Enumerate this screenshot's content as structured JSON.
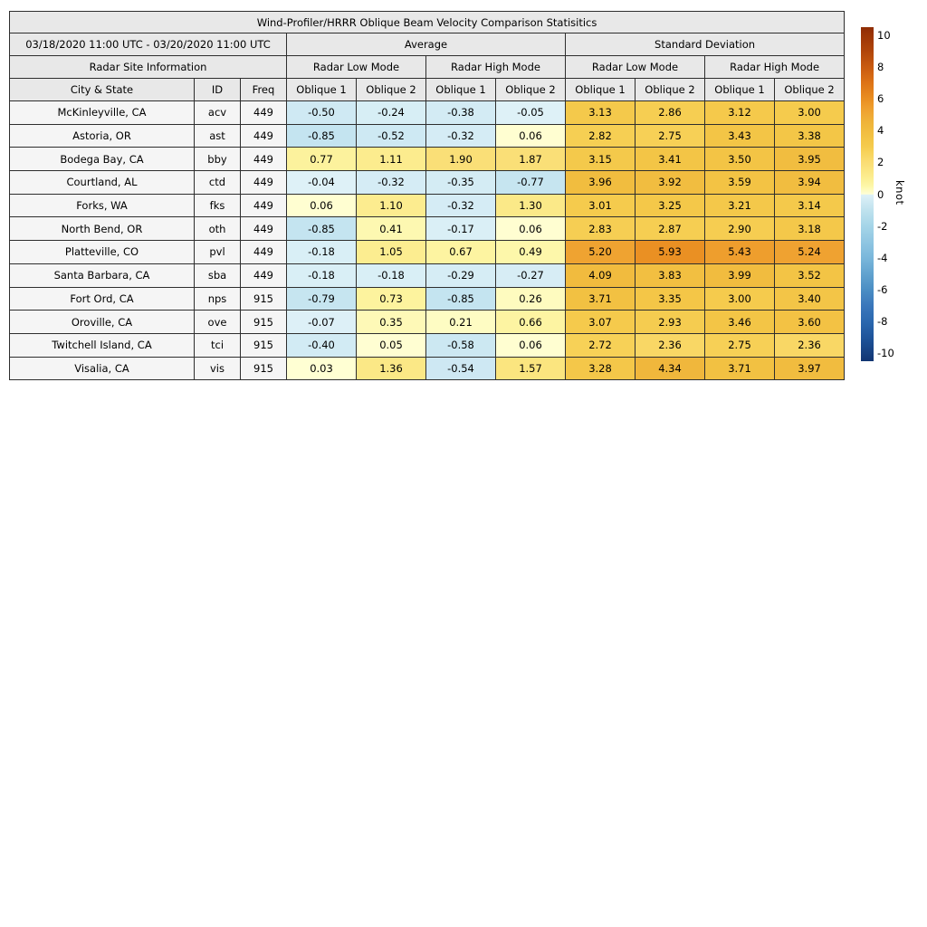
{
  "table": {
    "title": "Wind-Profiler/HRRR Oblique Beam Velocity Comparison Statisitics",
    "date_range": "03/18/2020 11:00 UTC - 03/20/2020 11:00 UTC",
    "groups": {
      "average": "Average",
      "std": "Standard Deviation"
    },
    "subgroups": {
      "site": "Radar Site Information",
      "low": "Radar Low Mode",
      "high": "Radar High Mode"
    },
    "columns": {
      "city": "City & State",
      "id": "ID",
      "freq": "Freq",
      "ob1": "Oblique 1",
      "ob2": "Oblique 2"
    }
  },
  "chart_data": {
    "type": "table",
    "title": "Wind-Profiler/HRRR Oblique Beam Velocity Comparison Statisitics",
    "period": "03/18/2020 11:00 UTC - 03/20/2020 11:00 UTC",
    "value_unit": "knot",
    "column_headers": [
      "City & State",
      "ID",
      "Freq",
      "Average Radar Low Mode Oblique 1",
      "Average Radar Low Mode Oblique 2",
      "Average Radar High Mode Oblique 1",
      "Average Radar High Mode Oblique 2",
      "Standard Deviation Radar Low Mode Oblique 1",
      "Standard Deviation Radar Low Mode Oblique 2",
      "Standard Deviation Radar High Mode Oblique 1",
      "Standard Deviation Radar High Mode Oblique 2"
    ],
    "rows": [
      {
        "city": "McKinleyville, CA",
        "id": "acv",
        "freq": "449",
        "values": [
          "-0.50",
          "-0.24",
          "-0.38",
          "-0.05",
          "3.13",
          "2.86",
          "3.12",
          "3.00"
        ]
      },
      {
        "city": "Astoria, OR",
        "id": "ast",
        "freq": "449",
        "values": [
          "-0.85",
          "-0.52",
          "-0.32",
          "0.06",
          "2.82",
          "2.75",
          "3.43",
          "3.38"
        ]
      },
      {
        "city": "Bodega Bay, CA",
        "id": "bby",
        "freq": "449",
        "values": [
          "0.77",
          "1.11",
          "1.90",
          "1.87",
          "3.15",
          "3.41",
          "3.50",
          "3.95"
        ]
      },
      {
        "city": "Courtland, AL",
        "id": "ctd",
        "freq": "449",
        "values": [
          "-0.04",
          "-0.32",
          "-0.35",
          "-0.77",
          "3.96",
          "3.92",
          "3.59",
          "3.94"
        ]
      },
      {
        "city": "Forks, WA",
        "id": "fks",
        "freq": "449",
        "values": [
          "0.06",
          "1.10",
          "-0.32",
          "1.30",
          "3.01",
          "3.25",
          "3.21",
          "3.14"
        ]
      },
      {
        "city": "North Bend, OR",
        "id": "oth",
        "freq": "449",
        "values": [
          "-0.85",
          "0.41",
          "-0.17",
          "0.06",
          "2.83",
          "2.87",
          "2.90",
          "3.18"
        ]
      },
      {
        "city": "Platteville, CO",
        "id": "pvl",
        "freq": "449",
        "values": [
          "-0.18",
          "1.05",
          "0.67",
          "0.49",
          "5.20",
          "5.93",
          "5.43",
          "5.24"
        ]
      },
      {
        "city": "Santa Barbara, CA",
        "id": "sba",
        "freq": "449",
        "values": [
          "-0.18",
          "-0.18",
          "-0.29",
          "-0.27",
          "4.09",
          "3.83",
          "3.99",
          "3.52"
        ]
      },
      {
        "city": "Fort Ord, CA",
        "id": "nps",
        "freq": "915",
        "values": [
          "-0.79",
          "0.73",
          "-0.85",
          "0.26",
          "3.71",
          "3.35",
          "3.00",
          "3.40"
        ]
      },
      {
        "city": "Oroville, CA",
        "id": "ove",
        "freq": "915",
        "values": [
          "-0.07",
          "0.35",
          "0.21",
          "0.66",
          "3.07",
          "2.93",
          "3.46",
          "3.60"
        ]
      },
      {
        "city": "Twitchell Island, CA",
        "id": "tci",
        "freq": "915",
        "values": [
          "-0.40",
          "0.05",
          "-0.58",
          "0.06",
          "2.72",
          "2.36",
          "2.75",
          "2.36"
        ]
      },
      {
        "city": "Visalia, CA",
        "id": "vis",
        "freq": "915",
        "values": [
          "0.03",
          "1.36",
          "-0.54",
          "1.57",
          "3.28",
          "4.34",
          "3.71",
          "3.97"
        ]
      }
    ]
  },
  "colorbar": {
    "label": "knot",
    "vmin": -10.5,
    "vmax": 10.5,
    "ticks": [
      "10",
      "8",
      "6",
      "4",
      "2",
      "0",
      "-2",
      "-4",
      "-6",
      "-8",
      "-10"
    ],
    "stops_positive": [
      [
        0.0,
        "#ffffd6"
      ],
      [
        0.5,
        "#fdf7a9"
      ],
      [
        1.0,
        "#fcee92"
      ],
      [
        1.5,
        "#fbe681"
      ],
      [
        2.0,
        "#fadd74"
      ],
      [
        2.5,
        "#f8d55f"
      ],
      [
        3.0,
        "#f5cb4d"
      ],
      [
        3.5,
        "#f3c445"
      ],
      [
        4.0,
        "#f1bc3f"
      ],
      [
        4.5,
        "#efb43a"
      ],
      [
        5.0,
        "#efa835"
      ],
      [
        5.5,
        "#ee9c2c"
      ],
      [
        6.0,
        "#e98e21"
      ],
      [
        7.0,
        "#dd7316"
      ],
      [
        8.0,
        "#c85a10"
      ],
      [
        9.0,
        "#b0450a"
      ],
      [
        10.0,
        "#9c3506"
      ],
      [
        10.5,
        "#8f2d05"
      ]
    ],
    "stops_negative": [
      [
        -10.5,
        "#113572"
      ],
      [
        -10.0,
        "#164080"
      ],
      [
        -9.0,
        "#1e549b"
      ],
      [
        -8.0,
        "#2b68af"
      ],
      [
        -7.0,
        "#3a77bb"
      ],
      [
        -6.0,
        "#4b8ec4"
      ],
      [
        -5.0,
        "#62a3cf"
      ],
      [
        -4.0,
        "#7ab7db"
      ],
      [
        -3.0,
        "#90c6e2"
      ],
      [
        -2.0,
        "#a5d5e8"
      ],
      [
        -1.0,
        "#bfe2ee"
      ],
      [
        -0.5,
        "#cfe9f3"
      ],
      [
        -0.04,
        "#def1f7"
      ]
    ]
  },
  "colors": {
    "header_bg": "#e8e8e8",
    "label_bg": "#f5f5f5",
    "border": "#2e2e2e",
    "background": "#ffffff"
  }
}
